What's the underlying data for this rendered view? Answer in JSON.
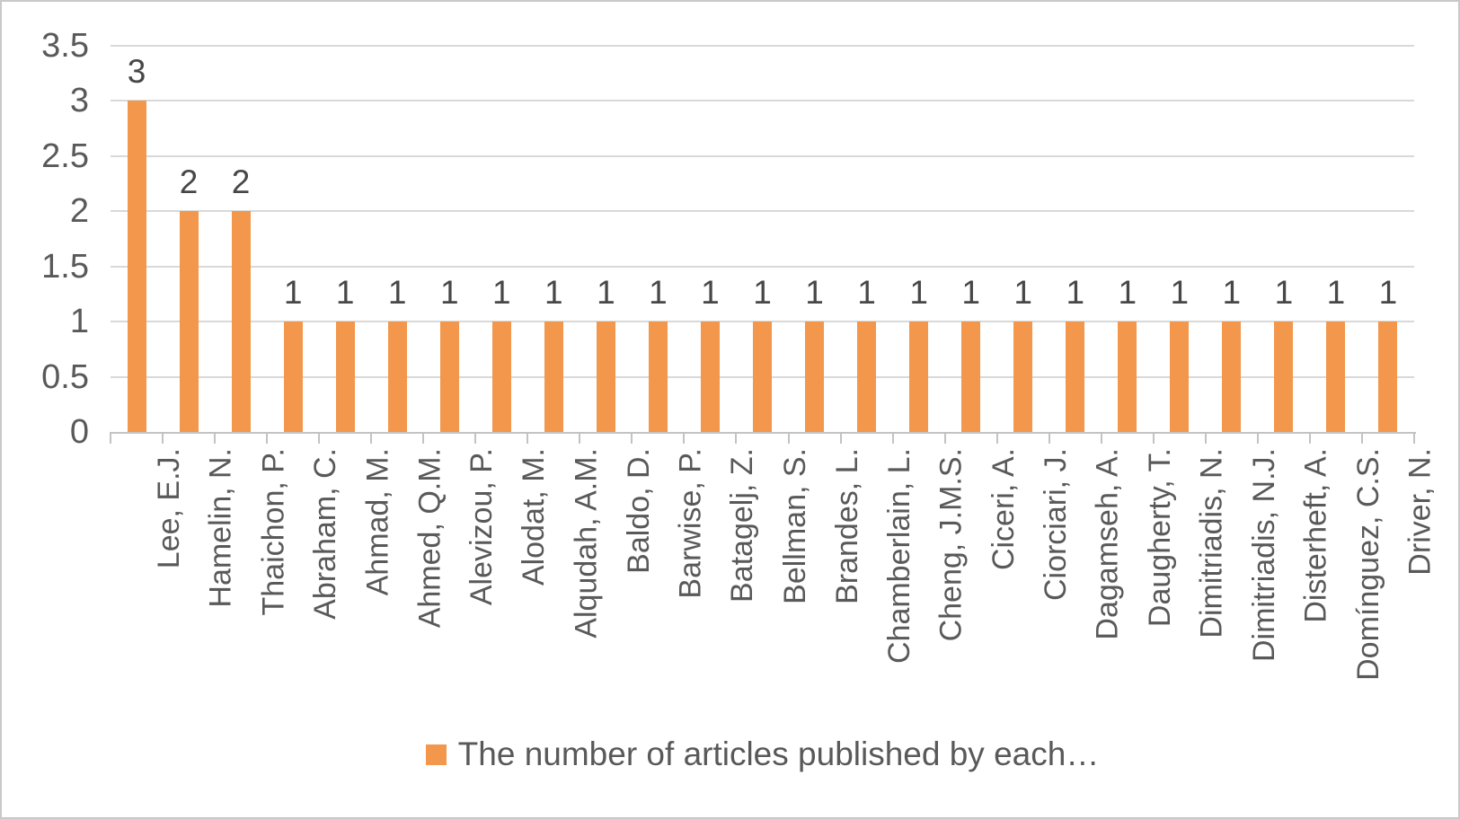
{
  "chart_data": {
    "type": "bar",
    "title": "",
    "categories": [
      "Lee, E.J.",
      "Hamelin, N.",
      "Thaichon, P.",
      "Abraham, C.",
      "Ahmad, M.",
      "Ahmed, Q.M.",
      "Alevizou, P.",
      "Alodat, M.",
      "Alqudah, A.M.",
      "Baldo, D.",
      "Barwise, P.",
      "Batagelj, Z.",
      "Bellman, S.",
      "Brandes, L.",
      "Chamberlain, L.",
      "Cheng, J.M.S.",
      "Ciceri, A.",
      "Ciorciari, J.",
      "Dagamseh, A.",
      "Daugherty, T.",
      "Dimitriadis, N.",
      "Dimitriadis, N.J.",
      "Disterheft, A.",
      "Domínguez, C.S.",
      "Driver, N."
    ],
    "values": [
      3,
      2,
      2,
      1,
      1,
      1,
      1,
      1,
      1,
      1,
      1,
      1,
      1,
      1,
      1,
      1,
      1,
      1,
      1,
      1,
      1,
      1,
      1,
      1,
      1
    ],
    "data_labels_shown": true,
    "xlabel": "",
    "ylabel": "",
    "ylim": [
      0,
      3.5
    ],
    "yticks": [
      0,
      0.5,
      1,
      1.5,
      2,
      2.5,
      3,
      3.5
    ],
    "ytick_labels": [
      "0",
      "0.5",
      "1",
      "1.5",
      "2",
      "2.5",
      "3",
      "3.5"
    ],
    "grid": true,
    "legend": {
      "label": "The number of articles published by each…",
      "position": "bottom",
      "marker": "square"
    },
    "colors": {
      "bar": "#F2974C",
      "gridline": "#D9D9D9",
      "axis_line": "#C3C3C3",
      "axis_text": "#595959",
      "data_label_text": "#474747",
      "border": "#C9C9C9"
    }
  }
}
